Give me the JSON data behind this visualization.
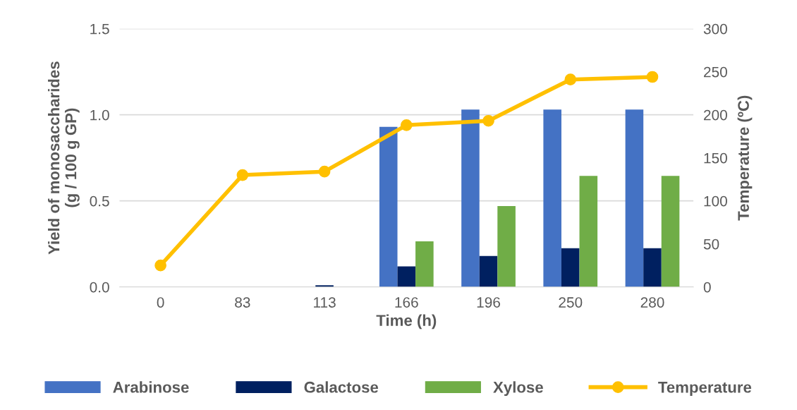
{
  "chart_data": {
    "type": "bar",
    "xlabel": "Time (h)",
    "ylabel": "Yield of monosaccharides\n(g / 100 g GP)",
    "y2label": "Temperature (ºC)",
    "categories": [
      "0",
      "83",
      "113",
      "166",
      "196",
      "250",
      "280"
    ],
    "series": [
      {
        "name": "Arabinose",
        "color": "#4472c4",
        "values": [
          0,
          0,
          0,
          0.93,
          1.03,
          1.03,
          1.03
        ]
      },
      {
        "name": "Galactose",
        "color": "#002060",
        "values": [
          0,
          0,
          0.01,
          0.12,
          0.18,
          0.225,
          0.225
        ]
      },
      {
        "name": "Xylose",
        "color": "#70ad47",
        "values": [
          0,
          0,
          0,
          0.265,
          0.47,
          0.645,
          0.645
        ]
      },
      {
        "name": "Temperature",
        "type": "line",
        "axis": "y2",
        "color": "#ffc000",
        "marker": "circle",
        "values": [
          25,
          130,
          134,
          188,
          193,
          241,
          244
        ]
      }
    ],
    "ylim": [
      0,
      1.5
    ],
    "yticks": [
      {
        "value": 0,
        "label": "0.0"
      },
      {
        "value": 0.5,
        "label": "0.5"
      },
      {
        "value": 1.0,
        "label": "1.0"
      },
      {
        "value": 1.5,
        "label": "1.5"
      }
    ],
    "y2lim": [
      0,
      300
    ],
    "y2ticks": [
      0,
      50,
      100,
      150,
      200,
      250,
      300
    ],
    "grid": "y",
    "legend": "bottom"
  }
}
